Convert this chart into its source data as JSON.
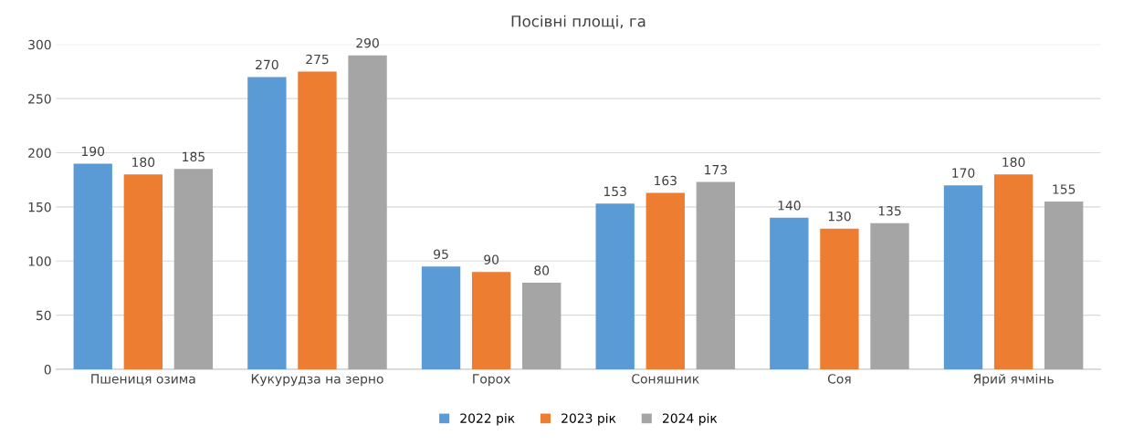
{
  "chart_data": {
    "type": "bar",
    "title": "Посівні площі, га",
    "categories": [
      "Пшениця озима",
      "Кукурудза на зерно",
      "Горох",
      "Соняшник",
      "Соя",
      "Ярий ячмінь"
    ],
    "series": [
      {
        "name": "2022 рік",
        "color": "#5b9bd5",
        "values": [
          190,
          270,
          95,
          153,
          140,
          170
        ]
      },
      {
        "name": "2023 рік",
        "color": "#ed7d31",
        "values": [
          180,
          275,
          90,
          163,
          130,
          180
        ]
      },
      {
        "name": "2024 рік",
        "color": "#a5a5a5",
        "values": [
          185,
          290,
          80,
          173,
          135,
          155
        ]
      }
    ],
    "ylim": [
      0,
      300
    ],
    "yticks": [
      0,
      50,
      100,
      150,
      200,
      250,
      300
    ],
    "grid": "y",
    "legend": "bottom",
    "data_labels": true
  }
}
